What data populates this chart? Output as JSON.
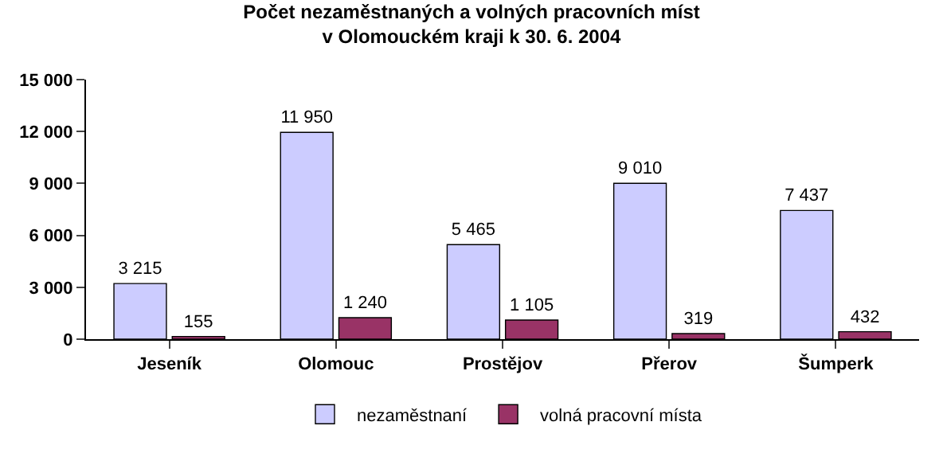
{
  "chart_data": {
    "type": "bar",
    "title": "Počet nezaměstnaných a volných pracovních míst\nv Olomouckém kraji k 30. 6. 2004",
    "categories": [
      "Jeseník",
      "Olomouc",
      "Prostějov",
      "Přerov",
      "Šumperk"
    ],
    "series": [
      {
        "name": "nezaměstnaní",
        "color": "#ccccff",
        "values": [
          3215,
          11950,
          5465,
          9010,
          7437
        ],
        "value_labels": [
          "3 215",
          "11 950",
          "5 465",
          "9 010",
          "7 437"
        ]
      },
      {
        "name": "volná pracovní místa",
        "color": "#993366",
        "values": [
          155,
          1240,
          1105,
          319,
          432
        ],
        "value_labels": [
          "155",
          "1 240",
          "1 105",
          "319",
          "432"
        ]
      }
    ],
    "ylim": [
      0,
      15000
    ],
    "yticks": [
      0,
      {
        "value": 3000,
        "label": "3 000"
      },
      {
        "value": 6000,
        "label": "6 000"
      },
      {
        "value": 9000,
        "label": "9 000"
      },
      {
        "value": 12000,
        "label": "12 000"
      },
      {
        "value": 15000,
        "label": "15 000"
      }
    ],
    "grid": false,
    "legend": "bottom"
  }
}
